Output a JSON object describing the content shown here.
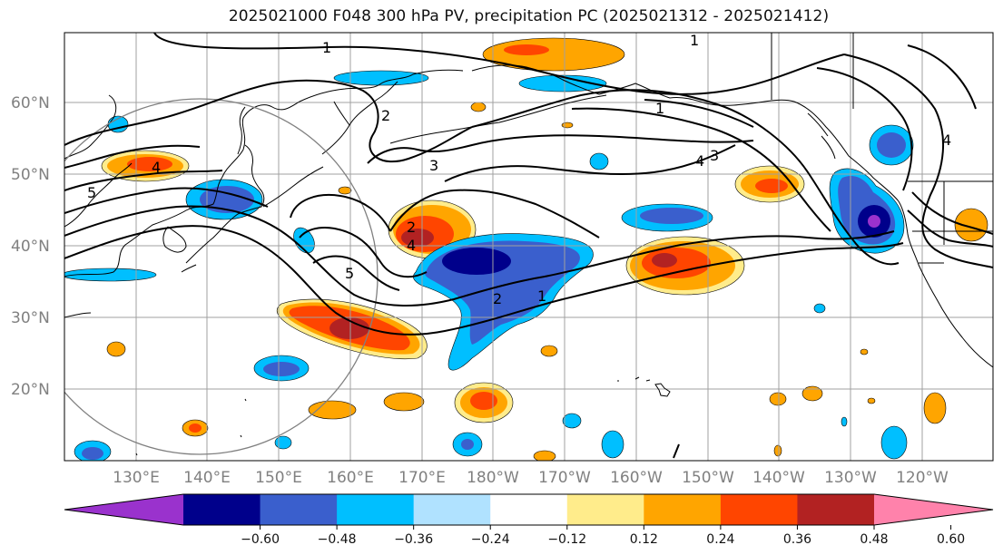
{
  "title": "2025021000 F048 300 hPa PV, precipitation PC (2025021312 - 2025021412)",
  "lat_ticks": [
    "20°N",
    "30°N",
    "40°N",
    "50°N",
    "60°N"
  ],
  "lon_ticks": [
    "130°E",
    "140°E",
    "150°E",
    "160°E",
    "170°E",
    "180°W",
    "170°W",
    "160°W",
    "150°W",
    "140°W",
    "130°W",
    "120°W"
  ],
  "contour_labels": [
    "1",
    "1",
    "1",
    "2",
    "3",
    "3",
    "4",
    "4",
    "5",
    "2",
    "4",
    "5",
    "2",
    "1",
    "4"
  ],
  "colorbar": {
    "colors": [
      "#9a32cd",
      "#00008b",
      "#3a5fcd",
      "#00bfff",
      "#b0e2ff",
      "#ffffff",
      "#ffec8b",
      "#ffa500",
      "#ff4500",
      "#b22222",
      "#ff82ab"
    ],
    "ticks": [
      "−0.60",
      "−0.48",
      "−0.36",
      "−0.24",
      "−0.12",
      "0.12",
      "0.24",
      "0.36",
      "0.48",
      "0.60"
    ]
  },
  "colors": {
    "grid": "#a0a0a0",
    "coast": "#000000",
    "circle": "#808080"
  }
}
